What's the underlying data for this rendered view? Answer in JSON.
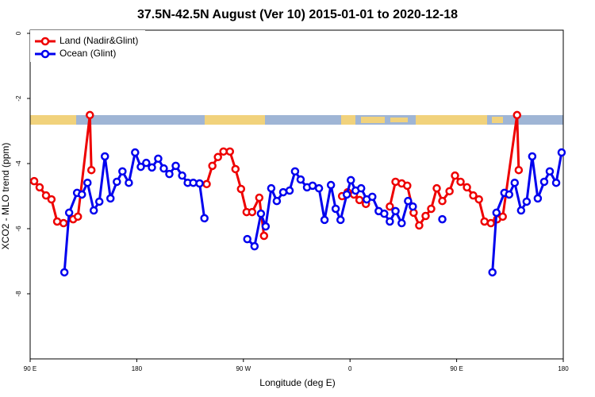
{
  "chart_data": {
    "type": "line",
    "title": "37.5N-42.5N August (Ver 10)   2015-01-01 to 2020-12-18",
    "xlabel": "Longitude (deg E)",
    "ylabel": "XCO2 - MLO trend (ppm)",
    "xlim": [
      90,
      540
    ],
    "xticks": [
      {
        "value": 90,
        "label": "90 E"
      },
      180,
      {
        "value": 270,
        "label": "90 W"
      },
      {
        "value": 360,
        "label": "0"
      },
      {
        "value": 450,
        "label": "90 E"
      },
      {
        "value": 540,
        "label": "180"
      }
    ],
    "ylim": [
      -10,
      0
    ],
    "yticks": [
      0,
      -2,
      -4,
      -6,
      -8
    ],
    "legend": "top-left",
    "series": [
      {
        "name": "Land (Nadir&Glint)",
        "color": "#ee0000",
        "x": [
          93.4,
          98,
          103.4,
          108,
          112.8,
          118.2,
          126.3,
          130.3,
          140.4,
          141.7,
          null,
          239,
          243.8,
          248.5,
          253.2,
          258.6,
          263.3,
          268,
          272.7,
          277.4,
          283.4,
          287.4,
          null,
          353.3,
          358,
          363.3,
          368,
          373.4,
          null,
          393.6,
          398.4,
          403.6,
          408.3,
          413.7,
          418.4,
          423.8,
          428.5,
          433.2,
          437.9,
          444,
          448.6,
          453.3,
          458.7,
          464,
          468.8,
          473.5,
          478.9,
          484.2,
          488.9,
          501,
          502.4
        ],
        "values": [
          -4.54,
          -4.73,
          -4.98,
          -5.1,
          -5.78,
          -5.83,
          -5.71,
          -5.63,
          -2.51,
          -4.2,
          null,
          -4.63,
          -4.07,
          -3.8,
          -3.63,
          -3.63,
          -4.17,
          -4.78,
          -5.49,
          -5.49,
          -5.05,
          -6.22,
          null,
          -5,
          -4.88,
          -4.95,
          -5.12,
          -5.24,
          null,
          -5.32,
          -4.56,
          -4.61,
          -4.68,
          -5.51,
          -5.9,
          -5.61,
          -5.39,
          -4.76,
          -5.15,
          -4.85,
          -4.37,
          -4.56,
          -4.73,
          -4.98,
          -5.1,
          -5.78,
          -5.83,
          -5.71,
          -5.63,
          -2.51,
          -4.2
        ]
      },
      {
        "name": "Ocean (Glint)",
        "color": "#0000ee",
        "x": [
          118.9,
          122.9,
          129.6,
          133.7,
          138.4,
          143.7,
          148.4,
          153.1,
          157.8,
          163.2,
          167.9,
          173.3,
          178.6,
          183.4,
          188,
          192.8,
          198.1,
          202.8,
          207.5,
          212.9,
          218.3,
          223,
          227.7,
          233,
          237.1,
          null,
          273.3,
          279.4,
          284.8,
          288.8,
          293.5,
          298.2,
          303.6,
          309,
          313.6,
          318.3,
          323.7,
          328.4,
          333.8,
          338.5,
          343.9,
          347.9,
          352,
          357.3,
          360.7,
          364.7,
          369.4,
          374.1,
          378.8,
          384.2,
          388.9,
          393.6,
          398.4,
          403.6,
          409,
          413,
          null,
          437.9,
          null,
          480.2,
          483.6,
          490.3,
          494.3,
          499,
          504.4,
          509.1,
          513.8,
          518.5,
          523.9,
          528.6,
          534,
          538.6
        ],
        "values": [
          -7.34,
          -5.51,
          -4.9,
          -4.95,
          -4.59,
          -5.44,
          -5.17,
          -3.78,
          -5.07,
          -4.56,
          -4.24,
          -4.59,
          -3.66,
          -4.1,
          -3.98,
          -4.12,
          -3.85,
          -4.15,
          -4.32,
          -4.07,
          -4.37,
          -4.59,
          -4.59,
          -4.61,
          -5.68,
          null,
          -6.32,
          -6.54,
          -5.54,
          -5.93,
          -4.76,
          -5.15,
          -4.88,
          -4.83,
          -4.24,
          -4.49,
          -4.73,
          -4.68,
          -4.76,
          -5.73,
          -4.66,
          -5.39,
          -5.73,
          -4.95,
          -4.51,
          -4.83,
          -4.76,
          -5.1,
          -5.02,
          -5.46,
          -5.54,
          -5.78,
          -5.46,
          -5.83,
          -5.15,
          -5.32,
          null,
          -5.71,
          null,
          -7.34,
          -5.51,
          -4.9,
          -4.95,
          -4.59,
          -5.44,
          -5.17,
          -3.78,
          -5.07,
          -4.56,
          -4.24,
          -4.59,
          -3.66
        ]
      }
    ]
  }
}
